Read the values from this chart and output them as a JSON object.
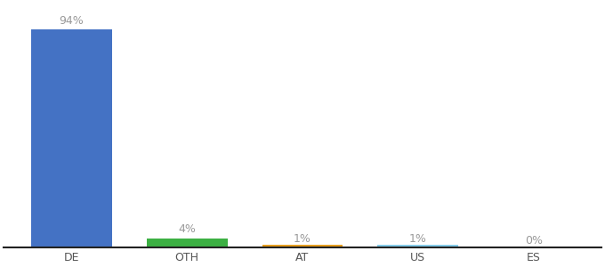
{
  "categories": [
    "DE",
    "OTH",
    "AT",
    "US",
    "ES"
  ],
  "values": [
    94,
    4,
    1,
    1,
    0
  ],
  "labels": [
    "94%",
    "4%",
    "1%",
    "1%",
    "0%"
  ],
  "colors": [
    "#4472C4",
    "#3CB043",
    "#E8A020",
    "#87CEEB",
    "#4472C4"
  ],
  "label_colors": [
    "#999999",
    "#999999",
    "#999999",
    "#999999",
    "#999999"
  ],
  "ylim": [
    0,
    105
  ],
  "bar_width": 0.7,
  "xlabel_color": "#555555",
  "xlabel_fontsize": 9,
  "label_fontsize": 9,
  "spine_color": "#222222"
}
